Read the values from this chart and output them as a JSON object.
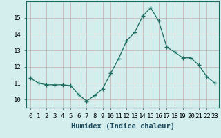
{
  "x": [
    0,
    1,
    2,
    3,
    4,
    5,
    6,
    7,
    8,
    9,
    10,
    11,
    12,
    13,
    14,
    15,
    16,
    17,
    18,
    19,
    20,
    21,
    22,
    23
  ],
  "y": [
    11.3,
    11.0,
    10.9,
    10.9,
    10.9,
    10.85,
    10.3,
    9.9,
    10.25,
    10.65,
    11.6,
    12.5,
    13.6,
    14.1,
    15.1,
    15.6,
    14.8,
    13.2,
    12.9,
    12.55,
    12.55,
    12.1,
    11.4,
    11.0
  ],
  "line_color": "#1a6b5e",
  "marker": "+",
  "marker_size": 4,
  "marker_lw": 1.0,
  "bg_color": "#d4eeee",
  "grid_color": "#c4adad",
  "xlabel": "Humidex (Indice chaleur)",
  "xlabel_color": "#1a4a5e",
  "ylim": [
    9.5,
    16.0
  ],
  "xlim": [
    -0.5,
    23.5
  ],
  "yticks": [
    10,
    11,
    12,
    13,
    14,
    15
  ],
  "xtick_labels": [
    "0",
    "1",
    "2",
    "3",
    "4",
    "5",
    "6",
    "7",
    "8",
    "9",
    "10",
    "11",
    "12",
    "13",
    "14",
    "15",
    "16",
    "17",
    "18",
    "19",
    "20",
    "21",
    "22",
    "23"
  ],
  "label_fontsize": 7.5,
  "tick_fontsize": 6.5
}
